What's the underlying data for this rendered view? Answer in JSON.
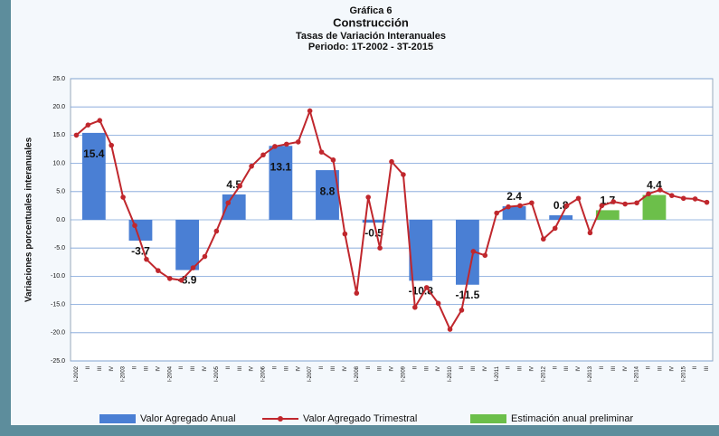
{
  "chart_data": {
    "type": "bar-line",
    "title": "Gráfica 6",
    "subtitle": "Construcción",
    "subtitle2": "Tasas de Variación Interanuales",
    "subtitle3": "Periodo: 1T-2002 - 3T-2015",
    "y_label": "Variaciones porcentuales interanuales",
    "categories": [
      "I-2002",
      "II",
      "III",
      "IV",
      "I-2003",
      "II",
      "III",
      "IV",
      "I-2004",
      "II",
      "III",
      "IV",
      "I-2005",
      "II",
      "III",
      "IV",
      "I-2006",
      "II",
      "III",
      "IV",
      "I-2007",
      "II",
      "III",
      "IV",
      "I-2008",
      "II",
      "III",
      "IV",
      "I-2009",
      "II",
      "III",
      "IV",
      "I-2010",
      "II",
      "III",
      "IV",
      "I-2011",
      "II",
      "III",
      "IV",
      "I-2012",
      "II",
      "III",
      "IV",
      "I-2013",
      "II",
      "III",
      "IV",
      "I-2014",
      "II",
      "III",
      "IV",
      "I-2015",
      "II",
      "III"
    ],
    "series": [
      {
        "name": "Valor Agregado Anual",
        "type": "bar",
        "color": "#4a7fd4",
        "values": [
          null,
          15.4,
          null,
          null,
          null,
          -3.7,
          null,
          null,
          null,
          -8.9,
          null,
          null,
          null,
          4.5,
          null,
          null,
          null,
          13.1,
          null,
          null,
          null,
          8.8,
          null,
          null,
          null,
          -0.5,
          null,
          null,
          null,
          -10.8,
          null,
          null,
          null,
          -11.5,
          null,
          null,
          null,
          2.4,
          null,
          null,
          null,
          0.8,
          null,
          null,
          null,
          null,
          null,
          null,
          null,
          null,
          null,
          null,
          null,
          null,
          null
        ]
      },
      {
        "name": "Valor Agregado Trimestral",
        "type": "line",
        "color": "#c0272d",
        "values": [
          15,
          16.8,
          17.6,
          13.2,
          4,
          -1,
          -7,
          -9,
          -10.4,
          -10.7,
          -8.5,
          -6.5,
          -2,
          3,
          6,
          9.5,
          11.5,
          13,
          13.4,
          13.8,
          19.3,
          12,
          10.6,
          -2.5,
          -13,
          4,
          -5,
          10.3,
          8,
          -15.5,
          -12,
          -14.8,
          -19.4,
          -16,
          -5.6,
          -6.3,
          1.2,
          2.3,
          2.5,
          3,
          -3.4,
          -1.5,
          2.5,
          3.8,
          -2.3,
          2.5,
          3.2,
          2.8,
          3,
          4.6,
          5.3,
          4.3,
          3.8,
          3.7,
          3.1
        ]
      },
      {
        "name": "Estimación anual preliminar",
        "type": "bar",
        "color": "#6cbf4a",
        "values": [
          null,
          null,
          null,
          null,
          null,
          null,
          null,
          null,
          null,
          null,
          null,
          null,
          null,
          null,
          null,
          null,
          null,
          null,
          null,
          null,
          null,
          null,
          null,
          null,
          null,
          null,
          null,
          null,
          null,
          null,
          null,
          null,
          null,
          null,
          null,
          null,
          null,
          null,
          null,
          null,
          null,
          null,
          null,
          null,
          null,
          1.7,
          null,
          null,
          null,
          4.4,
          null,
          null,
          null,
          null,
          null
        ]
      }
    ],
    "ylim": [
      -25,
      25
    ],
    "yticks": [
      {
        "value": -25,
        "label": "-25.0"
      },
      {
        "value": -20,
        "label": "-20.0"
      },
      {
        "value": -15,
        "label": "-15.0"
      },
      {
        "value": -10,
        "label": "-10.0"
      },
      {
        "value": -5,
        "label": "-5.0"
      },
      {
        "value": 0,
        "label": "0.0"
      },
      {
        "value": 5,
        "label": "5.0"
      },
      {
        "value": 10,
        "label": "10.0"
      },
      {
        "value": 15,
        "label": "15.0"
      },
      {
        "value": 20,
        "label": "20.0"
      },
      {
        "value": 25,
        "label": "25.0"
      }
    ],
    "grid": true,
    "legend": "bottom"
  }
}
